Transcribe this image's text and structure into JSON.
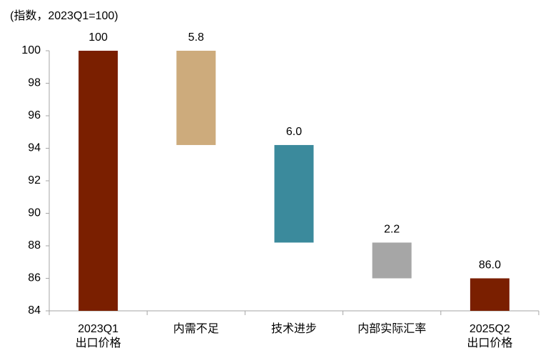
{
  "chart_data": {
    "type": "waterfall",
    "subtitle": "(指数，2023Q1=100)",
    "categories": [
      [
        "2023Q1",
        "出口价格"
      ],
      [
        "内需不足"
      ],
      [
        "技术进步"
      ],
      [
        "内部实际汇率"
      ],
      [
        "2025Q2",
        "出口价格"
      ]
    ],
    "values": [
      100,
      -5.8,
      -6.0,
      -2.2,
      86.0
    ],
    "value_labels": [
      "100",
      "5.8",
      "6.0",
      "2.2",
      "86.0"
    ],
    "colors": [
      "#7a1f00",
      "#cdab7c",
      "#3b8a9c",
      "#a6a6a6",
      "#7a1f00"
    ],
    "ylim": [
      84,
      100
    ],
    "yticks": [
      84,
      86,
      88,
      90,
      92,
      94,
      96,
      98,
      100
    ],
    "grid": false
  }
}
